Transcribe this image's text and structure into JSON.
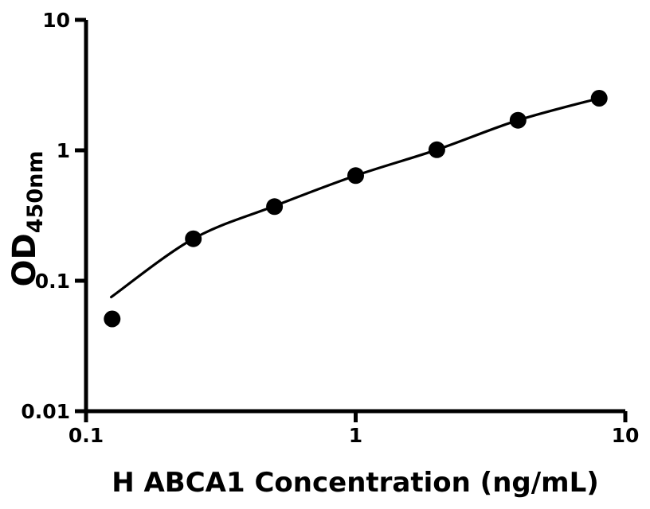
{
  "figure": {
    "background_color": "#ffffff",
    "ink_color": "#000000"
  },
  "chart_data": {
    "type": "scatter",
    "description": "ELISA standard curve, log-log axes, black filled circles with fitted curve",
    "x": [
      0.125,
      0.25,
      0.5,
      1,
      2,
      4,
      8
    ],
    "y": [
      0.051,
      0.21,
      0.37,
      0.64,
      1.01,
      1.7,
      2.51
    ],
    "fit_curve": {
      "x": [
        0.124,
        0.25,
        0.5,
        1,
        2,
        4,
        8
      ],
      "y": [
        0.075,
        0.21,
        0.374,
        0.64,
        1.01,
        1.7,
        2.51
      ]
    },
    "title": "",
    "xlabel": "H ABCA1 Concentration (ng/mL)",
    "ylabel_main": "OD",
    "ylabel_sub": "450nm",
    "xscale": "log",
    "yscale": "log",
    "xlim": [
      0.1,
      10
    ],
    "ylim": [
      0.01,
      10
    ],
    "x_ticks": [
      {
        "v": 0.1,
        "label": "0.1"
      },
      {
        "v": 1,
        "label": "1"
      },
      {
        "v": 10,
        "label": "10"
      }
    ],
    "y_ticks": [
      {
        "v": 10,
        "label": "10"
      },
      {
        "v": 1,
        "label": "1"
      },
      {
        "v": 0.1,
        "label": "0.1"
      },
      {
        "v": 0.01,
        "label": "0.01"
      }
    ],
    "grid": false,
    "legend": "none",
    "marker": {
      "shape": "circle",
      "color": "#000000",
      "radius": 10.5
    },
    "line_color": "#000000"
  }
}
